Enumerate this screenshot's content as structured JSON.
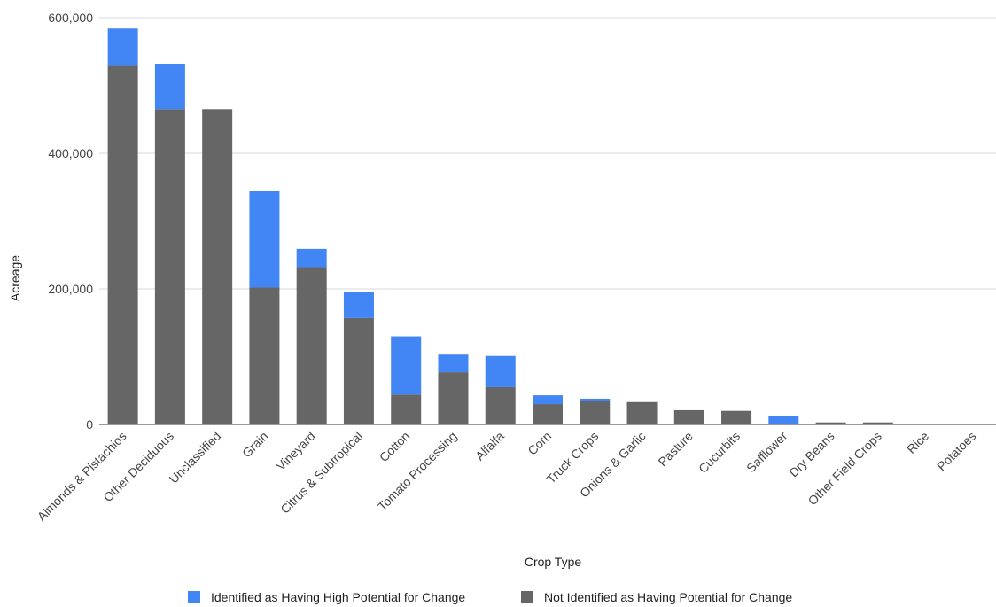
{
  "chart_data": {
    "type": "bar",
    "stacked": true,
    "xlabel": "Crop Type",
    "ylabel": "Acreage",
    "ylim": [
      0,
      600000
    ],
    "yticks": [
      0,
      200000,
      400000,
      600000
    ],
    "ytick_labels": [
      "0",
      "200,000",
      "400,000",
      "600,000"
    ],
    "grid": true,
    "legend_position": "bottom",
    "categories": [
      "Almonds & Pistachios",
      "Other Deciduous",
      "Unclassified",
      "Grain",
      "Vineyard",
      "Citrus & Subtropical",
      "Cotton",
      "Tomato Processing",
      "Alfalfa",
      "Corn",
      "Truck Crops",
      "Onions & Garlic",
      "Pasture",
      "Cucurbits",
      "Safflower",
      "Dry Beans",
      "Other Field Crops",
      "Rice",
      "Potatoes"
    ],
    "series": [
      {
        "name": "Not Identified as Having Potential for Change",
        "color": "#666666",
        "values": [
          530000,
          465000,
          465000,
          202000,
          232000,
          157000,
          44000,
          77000,
          55000,
          30000,
          35000,
          33000,
          21000,
          20000,
          0,
          3000,
          3000,
          1000,
          1000
        ]
      },
      {
        "name": "Identified as Having High Potential for Change",
        "color": "#4285f4",
        "values": [
          54000,
          67000,
          0,
          142000,
          27000,
          38000,
          86000,
          26000,
          46000,
          13000,
          3000,
          0,
          0,
          0,
          13000,
          0,
          0,
          0,
          0
        ]
      }
    ],
    "legend_order": [
      1,
      0
    ]
  }
}
